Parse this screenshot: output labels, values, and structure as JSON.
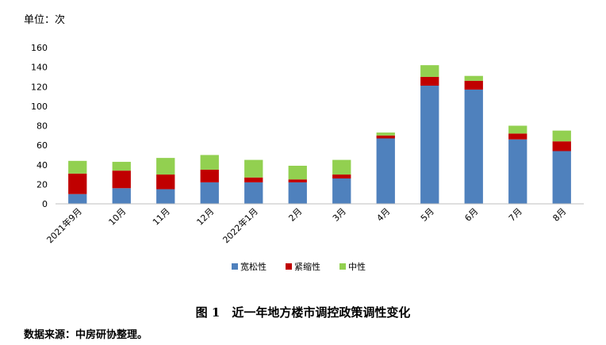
{
  "unit_label": "单位：次",
  "caption": "图 1　近一年地方楼市调控政策调性变化",
  "source": "数据来源：中房研协整理。",
  "chart_data": {
    "type": "bar",
    "stacked": true,
    "categories": [
      "2021年9月",
      "10月",
      "11月",
      "12月",
      "2022年1月",
      "2月",
      "3月",
      "4月",
      "5月",
      "6月",
      "7月",
      "8月"
    ],
    "series": [
      {
        "name": "宽松性",
        "color": "#4F81BD",
        "values": [
          10,
          16,
          15,
          22,
          22,
          22,
          26,
          67,
          121,
          117,
          66,
          54
        ]
      },
      {
        "name": "紧缩性",
        "color": "#C00000",
        "values": [
          21,
          18,
          15,
          13,
          5,
          3,
          4,
          3,
          9,
          9,
          6,
          10
        ]
      },
      {
        "name": "中性",
        "color": "#92D050",
        "values": [
          13,
          9,
          17,
          15,
          18,
          14,
          15,
          3,
          12,
          5,
          8,
          11
        ]
      }
    ],
    "ylim": [
      0,
      160
    ],
    "yticks": [
      0,
      20,
      40,
      60,
      80,
      100,
      120,
      140,
      160
    ],
    "legend_position": "bottom",
    "grid": false
  }
}
